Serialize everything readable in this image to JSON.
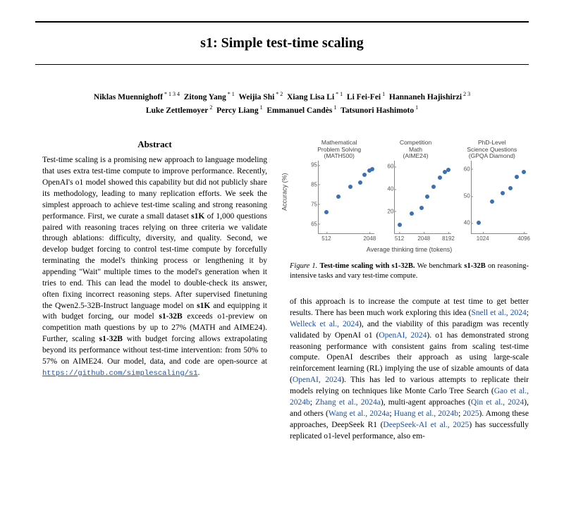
{
  "title": "s1: Simple test-time scaling",
  "authors_line1_html": "<span class='name'>Niklas Muennighoff</span><sup> * 1 3 4</sup>&nbsp;&nbsp;<span class='name'>Zitong Yang</span><sup> * 1</sup>&nbsp;&nbsp;<span class='name'>Weijia Shi</span><sup> * 2</sup>&nbsp;&nbsp;<span class='name'>Xiang Lisa Li</span><sup> * 1</sup>&nbsp;&nbsp;<span class='name'>Li Fei-Fei</span><sup> 1</sup>&nbsp;&nbsp;<span class='name'>Hannaneh Hajishirzi</span><sup> 2 3</sup>",
  "authors_line2_html": "<span class='name'>Luke Zettlemoyer</span><sup> 2</sup>&nbsp;&nbsp;<span class='name'>Percy Liang</span><sup> 1</sup>&nbsp;&nbsp;<span class='name'>Emmanuel Candès</span><sup> 1</sup>&nbsp;&nbsp;<span class='name'>Tatsunori Hashimoto</span><sup> 1</sup>",
  "abstract_heading": "Abstract",
  "abstract_html": "Test-time scaling is a promising new approach to language modeling that uses extra test-time compute to improve performance. Recently, OpenAI's o1 model showed this capability but did not publicly share its methodology, leading to many replication efforts. We seek the simplest approach to achieve test-time scaling and strong reasoning performance. First, we curate a small dataset <b>s1K</b> of 1,000 questions paired with reasoning traces relying on three criteria we validate through ablations: difficulty, diversity, and quality. Second, we develop budget forcing to control test-time compute by forcefully terminating the model's thinking process or lengthening it by appending \"Wait\" multiple times to the model's generation when it tries to end. This can lead the model to double-check its answer, often fixing incorrect reasoning steps. After supervised finetuning the Qwen2.5-32B-Instruct language model on <b>s1K</b> and equipping it with budget forcing, our model <b>s1-32B</b> exceeds o1-preview on competition math questions by up to 27% (MATH and AIME24). Further, scaling <b>s1-32B</b> with budget forcing allows extrapolating beyond its performance without test-time intervention: from 50% to 57% on AIME24. Our model, data, and code are open-source at <a class='link' href='#'>https://github.com/simplescaling/s1</a>.",
  "figure": {
    "ylab": "Accuracy (%)",
    "xlab": "Average thinking time (tokens)",
    "point_color": "#3b6fb6",
    "panels": [
      {
        "title_l1": "Mathematical",
        "title_l2": "Problem Solving",
        "title_l3": "(MATH500)",
        "ylim": [
          60,
          97
        ],
        "yticks": [
          65,
          75,
          85,
          95
        ],
        "xlim": [
          400,
          2400
        ],
        "xticks": [
          512,
          2048
        ],
        "points": [
          [
            512,
            71
          ],
          [
            760,
            79
          ],
          [
            1100,
            84
          ],
          [
            1500,
            86
          ],
          [
            1750,
            90
          ],
          [
            2048,
            92
          ],
          [
            2250,
            93
          ]
        ]
      },
      {
        "title_l1": "Competition",
        "title_l2": "Math",
        "title_l3": "(AIME24)",
        "ylim": [
          0,
          65
        ],
        "yticks": [
          20,
          40,
          60
        ],
        "xlim": [
          400,
          9500
        ],
        "xticks": [
          512,
          2048,
          8192
        ],
        "points": [
          [
            512,
            8
          ],
          [
            1024,
            18
          ],
          [
            1800,
            23
          ],
          [
            2500,
            33
          ],
          [
            3600,
            42
          ],
          [
            5000,
            50
          ],
          [
            6800,
            55
          ],
          [
            8192,
            57
          ]
        ]
      },
      {
        "title_l1": "PhD-Level",
        "title_l2": "Science Questions",
        "title_l3": "(GPQA Diamond)",
        "ylim": [
          36,
          63
        ],
        "yticks": [
          40,
          50,
          60
        ],
        "xlim": [
          700,
          4600
        ],
        "xticks": [
          1024,
          4096
        ],
        "points": [
          [
            900,
            40
          ],
          [
            1400,
            48
          ],
          [
            2000,
            51
          ],
          [
            2600,
            53
          ],
          [
            3200,
            57
          ],
          [
            4096,
            59
          ]
        ]
      }
    ],
    "caption_html": "<span class='fignum'>Figure 1.</span> <b>Test-time scaling with s1-32B.</b> We benchmark <b>s1-32B</b> on reasoning-intensive tasks and vary test-time compute."
  },
  "right_body_html": "of this approach is to increase the compute at test time to get better results. There has been much work exploring this idea (<span class='cite'>Snell et al., 2024</span>; <span class='cite'>Welleck et al., 2024</span>), and the viability of this paradigm was recently validated by OpenAI o1 (<span class='cite'>OpenAI, 2024</span>). o1 has demonstrated strong reasoning performance with consistent gains from scaling test-time compute. OpenAI describes their approach as using large-scale reinforcement learning (RL) implying the use of sizable amounts of data (<span class='cite'>OpenAI, 2024</span>). This has led to various attempts to replicate their models relying on techniques like Monte Carlo Tree Search (<span class='cite'>Gao et al., 2024b</span>; <span class='cite'>Zhang et al., 2024a</span>), multi-agent approaches (<span class='cite'>Qin et al., 2024</span>), and others (<span class='cite'>Wang et al., 2024a</span>; <span class='cite'>Huang et al., 2024b</span>; <span class='cite'>2025</span>). Among these approaches, DeepSeek R1 (<span class='cite'>DeepSeek-AI et al., 2025</span>) has successfully replicated o1-level performance, also em-"
}
